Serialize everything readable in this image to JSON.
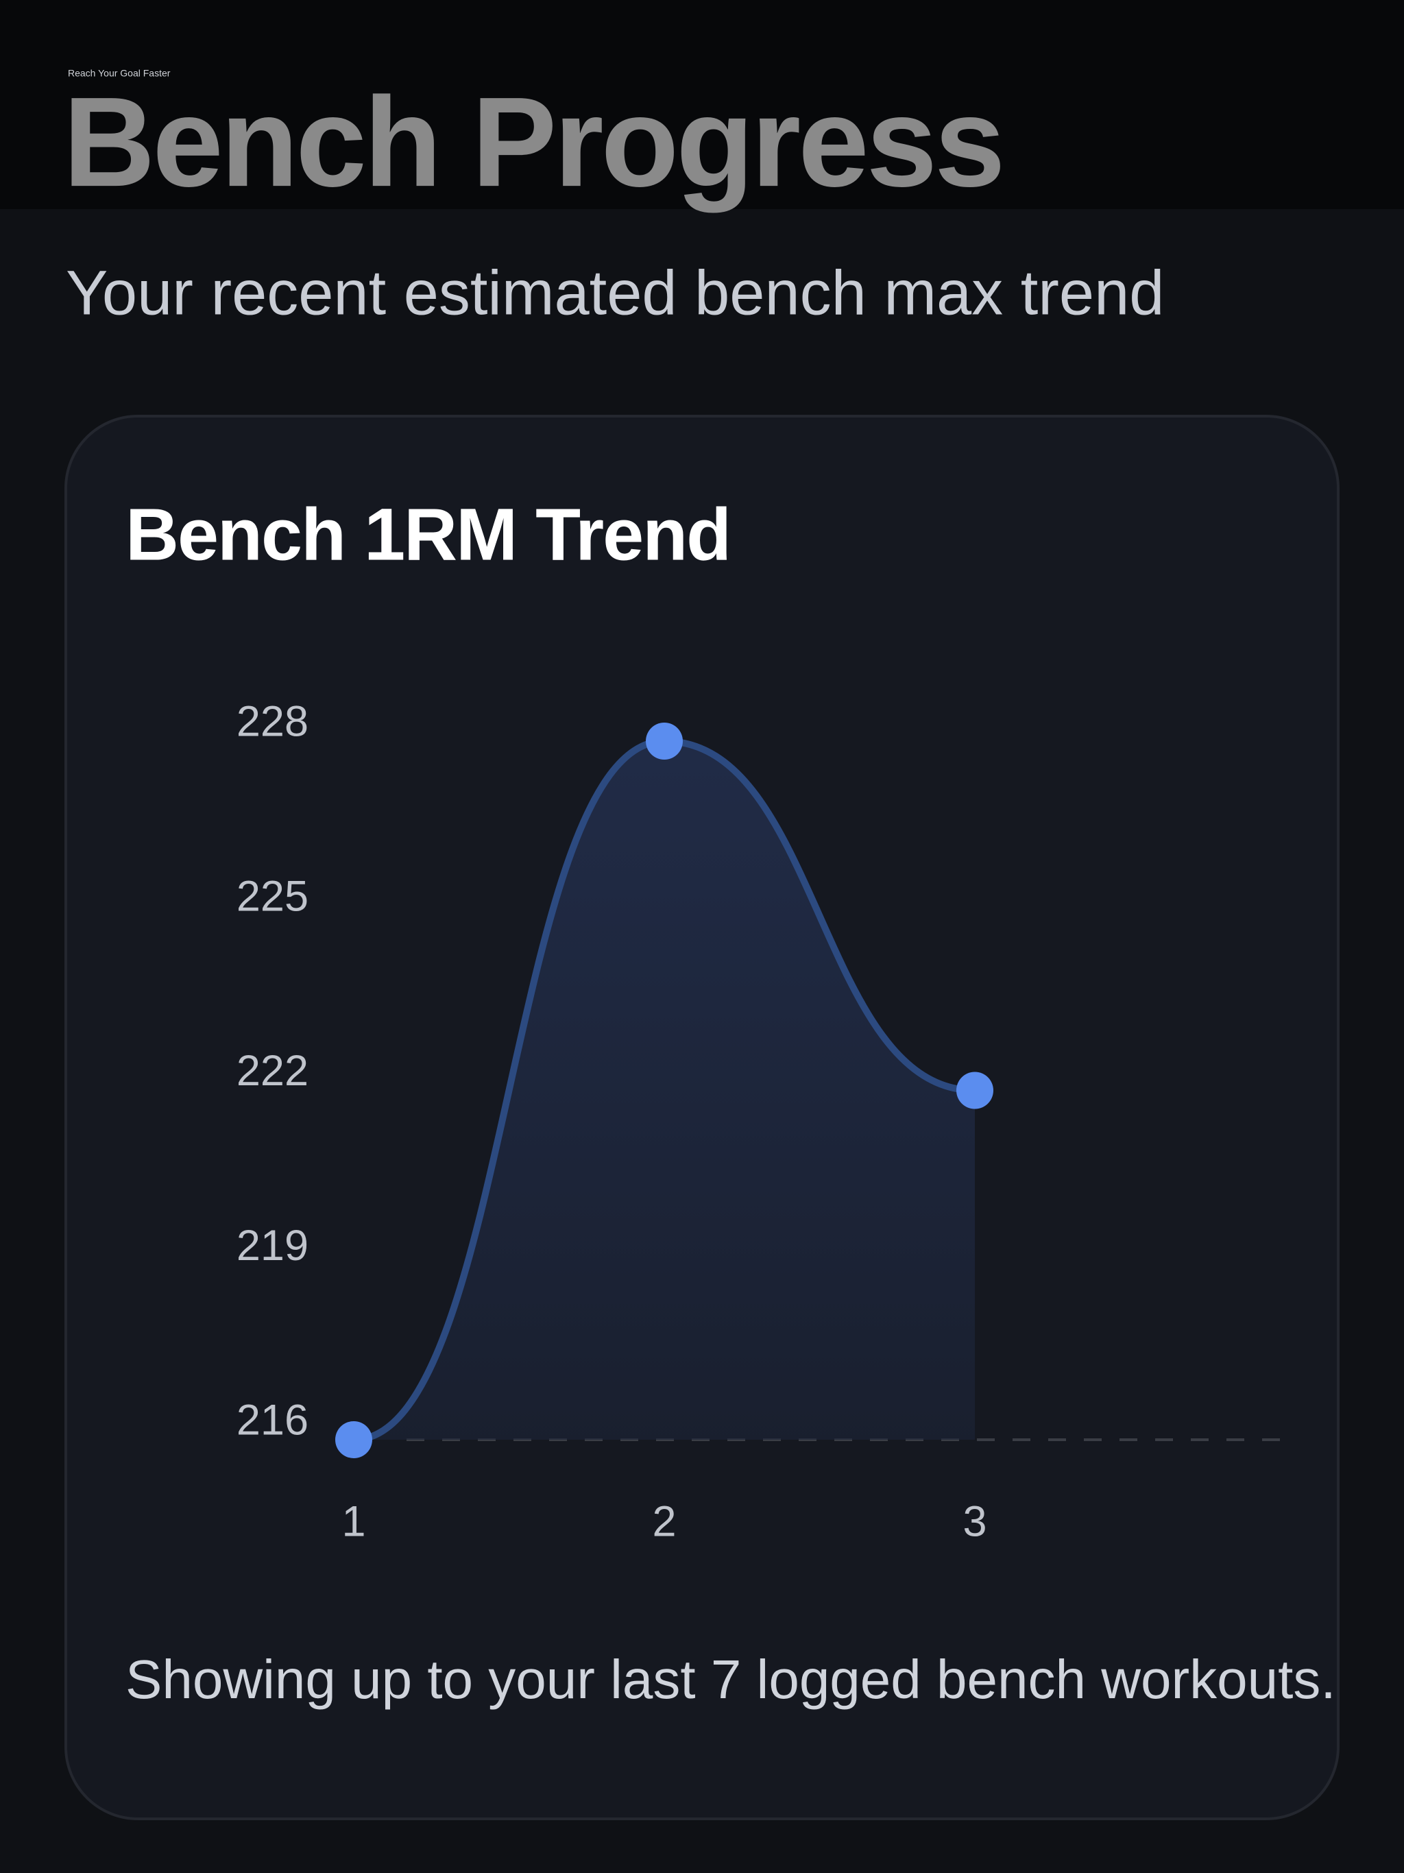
{
  "header": {
    "eyebrow": "Reach Your Goal Faster",
    "title": "Bench Progress",
    "subtitle": "Your recent estimated bench max trend"
  },
  "chart_data": {
    "type": "line",
    "title": "Bench 1RM Trend",
    "x": [
      1,
      2,
      3
    ],
    "values": [
      216,
      228,
      222
    ],
    "color": "#5b8def",
    "xlim": [
      1,
      4
    ],
    "xticks": [
      1,
      2,
      3
    ],
    "ylim": [
      216,
      228
    ],
    "yticks": [
      216,
      219,
      222,
      225,
      228
    ],
    "smooth": true,
    "area": true
  },
  "footnote": "Showing up to your last 7 logged bench workouts."
}
